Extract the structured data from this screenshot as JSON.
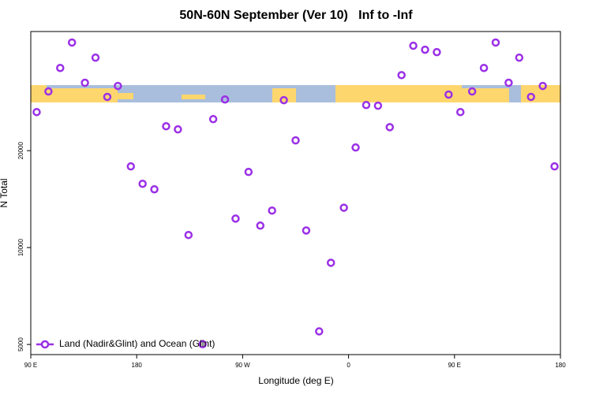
{
  "chart_data": {
    "type": "scatter",
    "title": "50N-60N September (Ver 10)   Inf to -Inf",
    "xlabel": "Longitude (deg E)",
    "ylabel": "N Total",
    "log_y": true,
    "legend": "bottom-left",
    "xlim": [
      90,
      540
    ],
    "xticks": [
      {
        "value": 90,
        "label": "90 E"
      },
      180,
      {
        "value": 270,
        "label": "90 W"
      },
      {
        "value": 360,
        "label": "0"
      },
      {
        "value": 450,
        "label": "90 E"
      },
      {
        "value": 540,
        "label": "180"
      }
    ],
    "ylim": [
      4650,
      46900
    ],
    "yticks": [
      5000,
      10000,
      20000
    ],
    "series": [
      {
        "name": "Land (Nadir&Glint) and Ocean (Glint)",
        "color": "#9b30e6",
        "x": [
          95,
          105,
          115,
          125,
          136,
          145,
          155,
          164,
          175,
          185,
          195,
          205,
          215,
          224,
          236,
          245,
          255,
          264,
          275,
          285,
          295,
          305,
          315,
          324,
          335,
          345,
          356,
          366,
          375,
          385,
          395,
          405,
          415,
          425,
          435,
          445,
          455,
          465,
          475,
          485,
          496,
          505,
          515,
          525,
          535
        ],
        "values": [
          26360,
          30550,
          36140,
          43350,
          32510,
          38900,
          29380,
          31770,
          17870,
          15780,
          15170,
          23820,
          23290,
          10940,
          5010,
          25060,
          28840,
          12300,
          17180,
          11700,
          13030,
          28700,
          21530,
          11300,
          5490,
          8970,
          13300,
          20460,
          27720,
          27590,
          23660,
          34330,
          42360,
          41170,
          40470,
          29880,
          26360,
          30550,
          36140,
          43350,
          32510,
          38900,
          29380,
          31770,
          17870
        ]
      }
    ]
  }
}
